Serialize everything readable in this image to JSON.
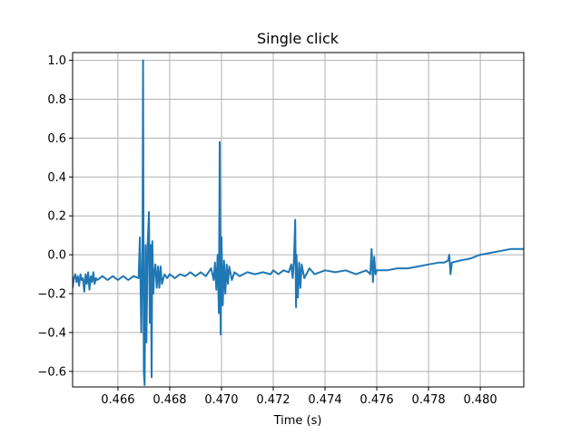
{
  "chart_data": {
    "type": "line",
    "title": "Single click",
    "xlabel": "Time (s)",
    "ylabel": "",
    "xlim": [
      0.46425,
      0.48168
    ],
    "ylim": [
      -0.68,
      1.04
    ],
    "grid": true,
    "line_color": "#1f77b4",
    "grid_color": "#b0b0b0",
    "xticks": [
      0.466,
      0.468,
      0.47,
      0.472,
      0.474,
      0.476,
      0.478,
      0.48
    ],
    "xtick_labels": [
      "0.466",
      "0.468",
      "0.470",
      "0.472",
      "0.474",
      "0.476",
      "0.478",
      "0.480"
    ],
    "yticks": [
      1.0,
      0.8,
      0.6,
      0.4,
      0.2,
      0.0,
      -0.2,
      -0.4,
      -0.6
    ],
    "ytick_labels": [
      "1.0",
      "0.8",
      "0.6",
      "0.4",
      "0.2",
      "0.0",
      "−0.2",
      "−0.4",
      "−0.6"
    ],
    "series": [
      {
        "x": [
          0.46425,
          0.4643,
          0.46435,
          0.4644,
          0.46445,
          0.4645,
          0.46455,
          0.4646,
          0.46465,
          0.4647,
          0.46475,
          0.4648,
          0.46485,
          0.4649,
          0.46495,
          0.465,
          0.46505,
          0.4651,
          0.46515,
          0.4652,
          0.4654,
          0.4656,
          0.4658,
          0.466,
          0.4662,
          0.4664,
          0.4666,
          0.4668,
          0.46685,
          0.4669,
          0.46695,
          0.46697,
          0.467,
          0.46703,
          0.46707,
          0.4671,
          0.46715,
          0.4672,
          0.46723,
          0.46727,
          0.4673,
          0.46733,
          0.46737,
          0.4674,
          0.46745,
          0.4675,
          0.46755,
          0.4676,
          0.46765,
          0.4677,
          0.4678,
          0.4679,
          0.468,
          0.4682,
          0.4684,
          0.4686,
          0.4688,
          0.469,
          0.4692,
          0.4694,
          0.4696,
          0.4697,
          0.46975,
          0.4698,
          0.46985,
          0.4699,
          0.46993,
          0.46997,
          0.47,
          0.47005,
          0.4701,
          0.47015,
          0.4702,
          0.47025,
          0.4703,
          0.4704,
          0.4705,
          0.4707,
          0.471,
          0.4713,
          0.4716,
          0.4719,
          0.472,
          0.4722,
          0.4724,
          0.4726,
          0.4727,
          0.47275,
          0.4728,
          0.47285,
          0.47288,
          0.4729,
          0.47295,
          0.473,
          0.47305,
          0.4731,
          0.4732,
          0.4734,
          0.4736,
          0.474,
          0.4744,
          0.4748,
          0.4752,
          0.4756,
          0.47575,
          0.4758,
          0.47585,
          0.4759,
          0.47595,
          0.476,
          0.4764,
          0.4768,
          0.4772,
          0.4776,
          0.478,
          0.4784,
          0.4786,
          0.47875,
          0.4788,
          0.47885,
          0.4789,
          0.4792,
          0.4796,
          0.48,
          0.4804,
          0.4808,
          0.4812,
          0.4817
        ],
        "y": [
          -0.17,
          -0.12,
          -0.1,
          -0.14,
          -0.11,
          -0.16,
          -0.1,
          -0.13,
          -0.12,
          -0.19,
          -0.1,
          -0.15,
          -0.09,
          -0.18,
          -0.11,
          -0.14,
          -0.09,
          -0.15,
          -0.12,
          -0.13,
          -0.11,
          -0.13,
          -0.11,
          -0.13,
          -0.11,
          -0.13,
          -0.11,
          -0.12,
          0.09,
          -0.4,
          0.05,
          1.0,
          -0.6,
          -0.67,
          0.05,
          -0.45,
          0.06,
          0.22,
          -0.35,
          0.05,
          -0.63,
          0.07,
          -0.2,
          -0.1,
          -0.05,
          -0.17,
          -0.06,
          -0.17,
          -0.06,
          -0.15,
          -0.1,
          -0.12,
          -0.1,
          -0.12,
          -0.1,
          -0.11,
          -0.09,
          -0.11,
          -0.09,
          -0.11,
          -0.07,
          -0.13,
          -0.04,
          -0.18,
          0.0,
          -0.3,
          0.58,
          -0.41,
          0.09,
          -0.26,
          -0.03,
          -0.2,
          -0.05,
          -0.15,
          -0.06,
          -0.13,
          -0.09,
          -0.11,
          -0.09,
          -0.1,
          -0.09,
          -0.1,
          -0.08,
          -0.1,
          -0.08,
          -0.09,
          -0.05,
          -0.12,
          -0.03,
          0.18,
          -0.27,
          0.0,
          -0.22,
          -0.04,
          -0.17,
          -0.05,
          -0.12,
          -0.07,
          -0.1,
          -0.08,
          -0.09,
          -0.08,
          -0.1,
          -0.08,
          -0.1,
          0.03,
          -0.14,
          -0.01,
          -0.1,
          -0.08,
          -0.08,
          -0.07,
          -0.07,
          -0.06,
          -0.05,
          -0.04,
          -0.04,
          -0.03,
          0.0,
          -0.1,
          -0.04,
          -0.03,
          -0.02,
          0.0,
          0.01,
          0.02,
          0.03,
          0.03
        ]
      }
    ]
  }
}
